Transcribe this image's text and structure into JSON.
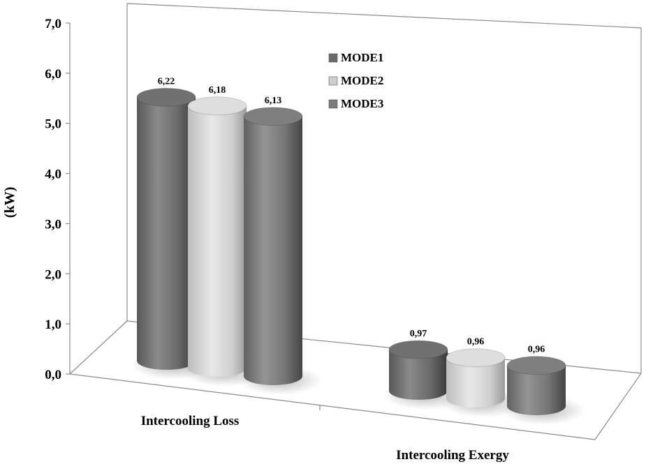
{
  "chart_data": {
    "type": "bar",
    "style": "3d-cylinder",
    "categories": [
      "Intercooling Loss",
      "Intercooling Exergy"
    ],
    "series": [
      {
        "name": "MODE1",
        "values": [
          6.22,
          0.97
        ],
        "value_labels": [
          "6,22",
          "0,97"
        ],
        "color": "#6f6f6f"
      },
      {
        "name": "MODE2",
        "values": [
          6.18,
          0.96
        ],
        "value_labels": [
          "6,18",
          "0,96"
        ],
        "color": "#c8c8c8"
      },
      {
        "name": "MODE3",
        "values": [
          6.13,
          0.96
        ],
        "value_labels": [
          "6,13",
          "0,96"
        ],
        "color": "#7c7c7c"
      }
    ],
    "ylabel": "(kW)",
    "ylim": [
      0,
      7
    ],
    "yticks": [
      0,
      1,
      2,
      3,
      4,
      5,
      6,
      7
    ],
    "ytick_labels": [
      "0,0",
      "1,0",
      "2,0",
      "3,0",
      "4,0",
      "5,0",
      "6,0",
      "7,0"
    ],
    "grid": false,
    "legend_position": "top-center"
  }
}
